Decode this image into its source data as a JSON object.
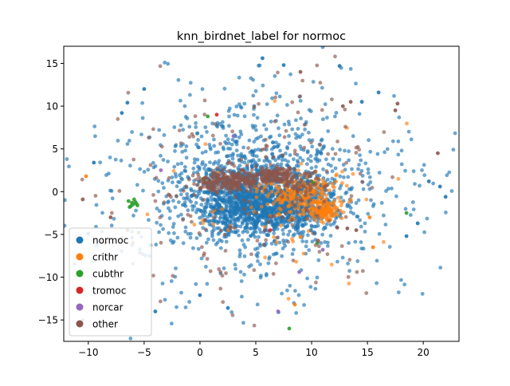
{
  "chart_data": {
    "type": "scatter",
    "title": "knn_birdnet_label for normoc",
    "xlabel": "",
    "ylabel": "",
    "xlim": [
      -12.2,
      23.2
    ],
    "ylim": [
      -17.5,
      17.0
    ],
    "xticks": [
      -10,
      -5,
      0,
      5,
      10,
      15,
      20
    ],
    "yticks": [
      -15,
      -10,
      -5,
      0,
      5,
      10,
      15
    ],
    "grid": false,
    "legend_position": "lower left",
    "point_alpha": 0.65,
    "series": [
      {
        "name": "normoc",
        "color": "#1f77b4",
        "clusters": [
          {
            "cx": 4.0,
            "cy": -1.0,
            "sx": 2.2,
            "sy": 2.0,
            "n": 900
          },
          {
            "cx": 8.5,
            "cy": -1.5,
            "sx": 1.8,
            "sy": 1.6,
            "n": 500
          },
          {
            "cx": 5.5,
            "cy": 0.5,
            "sx": 5.5,
            "sy": 4.5,
            "n": 700
          },
          {
            "cx": 5.0,
            "cy": 0.0,
            "sx": 8.5,
            "sy": 7.0,
            "n": 350
          }
        ],
        "points": [
          [
            -10.0,
            -4.9
          ],
          [
            -6.5,
            10.4
          ],
          [
            -7.0,
            9.2
          ],
          [
            0.0,
            -12.1
          ],
          [
            2.5,
            -13.6
          ],
          [
            21.5,
            0.6
          ],
          [
            22.0,
            -0.6
          ],
          [
            20.5,
            1.2
          ],
          [
            5.6,
            15.6
          ],
          [
            7.5,
            14.8
          ],
          [
            -4.0,
            -14.0
          ],
          [
            12.5,
            14.7
          ],
          [
            19.5,
            -3.7
          ],
          [
            18.5,
            -5.2
          ],
          [
            -9.5,
            3.4
          ],
          [
            -5.0,
            12.0
          ],
          [
            14.5,
            10.5
          ],
          [
            16.0,
            11.6
          ]
        ]
      },
      {
        "name": "crithr",
        "color": "#ff7f0e",
        "clusters": [
          {
            "cx": 11.3,
            "cy": -2.2,
            "sx": 0.6,
            "sy": 0.6,
            "n": 120
          },
          {
            "cx": 8.8,
            "cy": -0.3,
            "sx": 1.8,
            "sy": 1.3,
            "n": 220
          },
          {
            "cx": 7.0,
            "cy": -1.0,
            "sx": 5.0,
            "sy": 4.5,
            "n": 40
          }
        ],
        "points": [
          [
            -10.2,
            1.8
          ],
          [
            8.5,
            -13.2
          ],
          [
            15.2,
            -3.0
          ],
          [
            15.5,
            -6.5
          ],
          [
            9.0,
            -5.3
          ]
        ]
      },
      {
        "name": "cubthr",
        "color": "#2ca02c",
        "clusters": [],
        "points": [
          [
            -6.0,
            -1.5
          ],
          [
            -5.8,
            -1.2
          ],
          [
            -6.2,
            -1.7
          ],
          [
            -5.6,
            -1.6
          ],
          [
            -6.4,
            -1.1
          ],
          [
            -5.9,
            -0.9
          ],
          [
            -6.1,
            -1.3
          ],
          [
            -5.7,
            -1.4
          ],
          [
            -6.3,
            -1.8
          ],
          [
            8.0,
            -16.0
          ],
          [
            10.5,
            -6.0
          ],
          [
            18.5,
            -2.5
          ],
          [
            0.7,
            8.8
          ],
          [
            10.2,
            1.0
          ],
          [
            0.3,
            1.5
          ],
          [
            -5.5,
            -4.8
          ],
          [
            10.0,
            1.2
          ]
        ]
      },
      {
        "name": "tromoc",
        "color": "#d62728",
        "clusters": [],
        "points": [
          [
            1.5,
            9.0
          ],
          [
            6.3,
            -4.5
          ]
        ]
      },
      {
        "name": "norcar",
        "color": "#9467bd",
        "clusters": [],
        "points": [
          [
            7.0,
            -14.0
          ],
          [
            8.9,
            -9.4
          ],
          [
            -3.5,
            2.5
          ],
          [
            3.0,
            6.5
          ],
          [
            11.0,
            -6.8
          ]
        ]
      },
      {
        "name": "other",
        "color": "#8c564b",
        "clusters": [
          {
            "cx": 6.6,
            "cy": 1.9,
            "sx": 0.9,
            "sy": 0.5,
            "n": 140
          },
          {
            "cx": 1.8,
            "cy": 1.2,
            "sx": 1.0,
            "sy": 0.6,
            "n": 160
          },
          {
            "cx": 4.0,
            "cy": 1.3,
            "sx": 0.6,
            "sy": 0.5,
            "n": 60
          },
          {
            "cx": 9.2,
            "cy": 0.8,
            "sx": 0.9,
            "sy": 0.9,
            "n": 60
          },
          {
            "cx": 5.0,
            "cy": 0.0,
            "sx": 6.5,
            "sy": 6.0,
            "n": 200
          }
        ],
        "points": [
          [
            -10.5,
            -0.9
          ],
          [
            21.3,
            4.5
          ],
          [
            -8.0,
            -3.0
          ],
          [
            -8.5,
            -6.0
          ],
          [
            14.0,
            -4.5
          ],
          [
            13.2,
            -4.3
          ],
          [
            12.3,
            -4.2
          ],
          [
            12.8,
            10.0
          ],
          [
            13.5,
            10.5
          ],
          [
            17.5,
            9.5
          ],
          [
            17.7,
            10.3
          ],
          [
            -6.5,
            -4.5
          ],
          [
            9.0,
            14.0
          ]
        ]
      }
    ]
  }
}
